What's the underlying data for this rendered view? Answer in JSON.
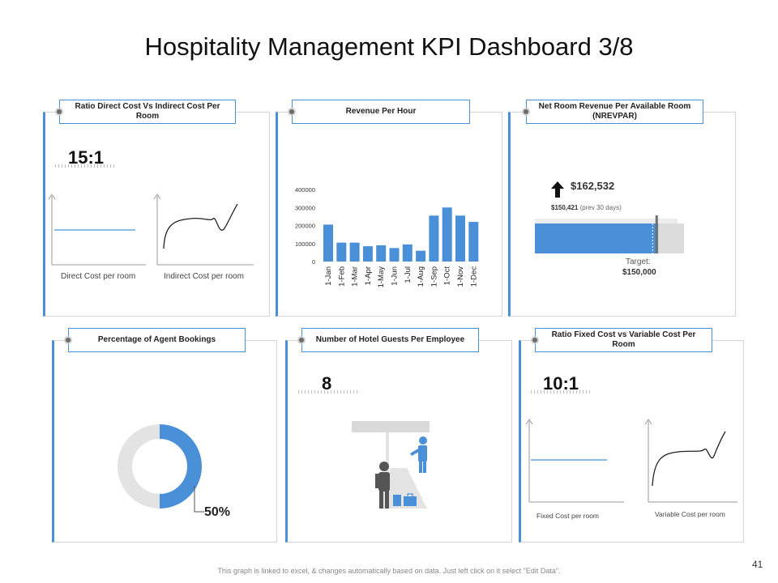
{
  "title": "Hospitality Management KPI Dashboard 3/8",
  "footer": "This graph is linked to excel, & changes automatically based on data. Just left click on it select \"Edit Data\".",
  "page_number": "41",
  "colors": {
    "accent": "#4a90d9",
    "gray": "#e3e3e3",
    "dark": "#222222"
  },
  "panels": {
    "p1": {
      "title": "Ratio Direct Cost Vs Indirect Cost Per Room",
      "value": "15:1",
      "label_a": "Direct Cost per room",
      "label_b": "Indirect Cost per room"
    },
    "p2": {
      "title": "Revenue Per Hour"
    },
    "p3": {
      "title": "Net Room Revenue Per Available Room (NREVPAR)",
      "value": "$162,532",
      "prev_value": "$150,421",
      "prev_label": "(prev 30 days)",
      "target_label": "Target:",
      "target_value": "$150,000"
    },
    "p4": {
      "title": "Percentage of Agent Bookings",
      "value": "50%"
    },
    "p5": {
      "title": "Number of Hotel Guests Per Employee",
      "value": "8"
    },
    "p6": {
      "title": "Ratio Fixed Cost vs Variable Cost Per Room",
      "value": "10:1",
      "label_a": "Fixed Cost per room",
      "label_b": "Variable Cost per room"
    }
  },
  "chart_data": [
    {
      "type": "bar",
      "title": "Revenue Per Hour",
      "categories": [
        "1-Jan",
        "1-Feb",
        "1-Mar",
        "1-Apr",
        "1-May",
        "1-Jun",
        "1-Jul",
        "1-Aug",
        "1-Sep",
        "1-Oct",
        "1-Nov",
        "1-Dec"
      ],
      "values": [
        205000,
        105000,
        105000,
        85000,
        90000,
        75000,
        95000,
        60000,
        255000,
        300000,
        255000,
        220000
      ],
      "yticks": [
        "0",
        "100000",
        "200000",
        "300000",
        "400000"
      ],
      "ylim": [
        0,
        400000
      ],
      "grid": false
    },
    {
      "type": "bar",
      "title": "Net Room Revenue Per Available Room (NREVPAR)",
      "orientation": "horizontal",
      "value": 162532,
      "previous": 150421,
      "target": 150000
    },
    {
      "type": "pie",
      "title": "Percentage of Agent Bookings",
      "values": [
        50,
        50
      ],
      "colors": [
        "#4a90d9",
        "#e3e3e3"
      ]
    }
  ]
}
